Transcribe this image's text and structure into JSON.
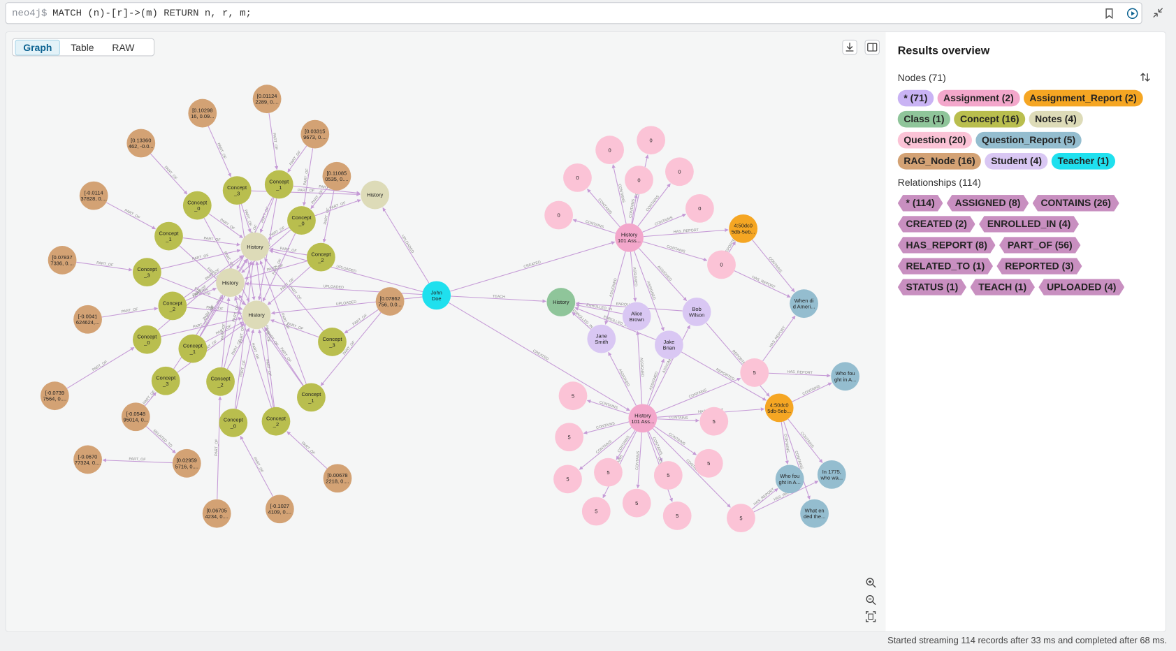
{
  "query_bar": {
    "prompt": "neo4j$",
    "query": "MATCH (n)-[r]->(m) RETURN n, r, m;"
  },
  "tabs": [
    "Graph",
    "Table",
    "RAW"
  ],
  "status": "Started streaming 114 records after 33 ms and completed after 68 ms.",
  "results_overview": {
    "title": "Results overview",
    "nodes_heading": "Nodes (71)",
    "node_chips": [
      {
        "label": "* (71)",
        "color": "#c9b3f4"
      },
      {
        "label": "Assignment (2)",
        "color": "#f3a7cb"
      },
      {
        "label": "Assignment_Report (2)",
        "color": "#f5a623"
      },
      {
        "label": "Class (1)",
        "color": "#8fc59a"
      },
      {
        "label": "Concept (16)",
        "color": "#b9be4e"
      },
      {
        "label": "Notes (4)",
        "color": "#dddbb8"
      },
      {
        "label": "Question (20)",
        "color": "#fbc3d6"
      },
      {
        "label": "Question_Report (5)",
        "color": "#94bdcf"
      },
      {
        "label": "RAG_Node (16)",
        "color": "#d3a274"
      },
      {
        "label": "Student (4)",
        "color": "#d9c7f3"
      },
      {
        "label": "Teacher (1)",
        "color": "#1fe0ee"
      }
    ],
    "relationships_heading": "Relationships (114)",
    "relationship_chip_color": "#c88fc0",
    "relationship_chips": [
      "* (114)",
      "ASSIGNED (8)",
      "CONTAINS (26)",
      "CREATED (2)",
      "ENROLLED_IN (4)",
      "HAS_REPORT (8)",
      "PART_OF (56)",
      "RELATED_TO (1)",
      "REPORTED (3)",
      "STATUS (1)",
      "TEACH (1)",
      "UPLOADED (4)"
    ]
  },
  "graph": {
    "edge_labels": [
      "PART_OF",
      "CONTAINS",
      "HAS_REPORT",
      "ASSIGNED",
      "ENROLLED_IN",
      "UPLOADED",
      "CREATED",
      "TEACH",
      "RELATED_TO",
      "REPORTED"
    ],
    "nodes": [
      {
        "label": [
          "[0.01124",
          "2289, 0...."
        ],
        "color": "#d3a274"
      },
      {
        "label": [
          "[0.10298",
          "16, 0.09..."
        ],
        "color": "#d3a274"
      },
      {
        "label": [
          "[0.13360",
          "462, -0.0..."
        ],
        "color": "#d3a274"
      },
      {
        "label": [
          "[0.03315",
          "9673, 0...."
        ],
        "color": "#d3a274"
      },
      {
        "label": [
          "[0.11085",
          "0535, 0...."
        ],
        "color": "#d3a274"
      },
      {
        "label": [
          "[-0.0114",
          "37828, 0...."
        ],
        "color": "#d3a274"
      },
      {
        "label": [
          "[0.07837",
          "7336, 0...."
        ],
        "color": "#d3a274"
      },
      {
        "label": [
          "[-0.0041",
          "624624,..."
        ],
        "color": "#d3a274"
      },
      {
        "label": [
          "[-0.0739",
          "7564, 0...."
        ],
        "color": "#d3a274"
      },
      {
        "label": [
          "[-0.0548",
          "95014, 0..."
        ],
        "color": "#d3a274"
      },
      {
        "label": [
          "[-0.0670",
          "77324, 0...."
        ],
        "color": "#d3a274"
      },
      {
        "label": [
          "[0.02959",
          "5716, 0...."
        ],
        "color": "#d3a274"
      },
      {
        "label": [
          "[0.06705",
          "4234, 0...."
        ],
        "color": "#d3a274"
      },
      {
        "label": [
          "[-0.1027",
          "4109, 0...."
        ],
        "color": "#d3a274"
      },
      {
        "label": [
          "[0.00678",
          "2218, 0...."
        ],
        "color": "#d3a274"
      },
      {
        "label": [
          "[0.07862",
          "756, 0.0..."
        ],
        "color": "#d3a274"
      },
      {
        "label": [
          "Concept",
          "_3"
        ],
        "color": "#b9be4e"
      },
      {
        "label": [
          "Concept",
          "_1"
        ],
        "color": "#b9be4e"
      },
      {
        "label": [
          "Concept",
          "_0"
        ],
        "color": "#b9be4e"
      },
      {
        "label": [
          "Concept",
          "_0"
        ],
        "color": "#b9be4e"
      },
      {
        "label": [
          "Concept",
          "_1"
        ],
        "color": "#b9be4e"
      },
      {
        "label": [
          "Concept",
          "_2"
        ],
        "color": "#b9be4e"
      },
      {
        "label": [
          "Concept",
          "_3"
        ],
        "color": "#b9be4e"
      },
      {
        "label": [
          "Concept",
          "_2"
        ],
        "color": "#b9be4e"
      },
      {
        "label": [
          "Concept",
          "_0"
        ],
        "color": "#b9be4e"
      },
      {
        "label": [
          "Concept",
          "_1"
        ],
        "color": "#b9be4e"
      },
      {
        "label": [
          "Concept",
          "_3"
        ],
        "color": "#b9be4e"
      },
      {
        "label": [
          "Concept",
          "_2"
        ],
        "color": "#b9be4e"
      },
      {
        "label": [
          "Concept",
          "_3"
        ],
        "color": "#b9be4e"
      },
      {
        "label": [
          "Concept",
          "_1"
        ],
        "color": "#b9be4e"
      },
      {
        "label": [
          "Concept",
          "_0"
        ],
        "color": "#b9be4e"
      },
      {
        "label": [
          "Concept",
          "_2"
        ],
        "color": "#b9be4e"
      },
      {
        "label": [
          "History"
        ],
        "color": "#dddbb8"
      },
      {
        "label": [
          "History"
        ],
        "color": "#dddbb8"
      },
      {
        "label": [
          "History"
        ],
        "color": "#dddbb8"
      },
      {
        "label": [
          "History"
        ],
        "color": "#dddbb8"
      },
      {
        "label": [
          "John",
          "Doe"
        ],
        "color": "#1fe0ee"
      },
      {
        "label": [
          "History"
        ],
        "color": "#8fc59a"
      },
      {
        "label": [
          "History",
          "101 Ass..."
        ],
        "color": "#f3a7cb"
      },
      {
        "label": [
          "History",
          "101 Ass..."
        ],
        "color": "#f3a7cb"
      },
      {
        "label": [
          "4:50dc0",
          "5db-5eb..."
        ],
        "color": "#f5a623"
      },
      {
        "label": [
          "4:50dc0",
          "5db-5eb..."
        ],
        "color": "#f5a623"
      },
      {
        "label": [
          "Alice",
          "Brown"
        ],
        "color": "#d9c7f3"
      },
      {
        "label": [
          "Bob",
          "Wilson"
        ],
        "color": "#d9c7f3"
      },
      {
        "label": [
          "Jane",
          "Smith"
        ],
        "color": "#d9c7f3"
      },
      {
        "label": [
          "Jake",
          "Brian"
        ],
        "color": "#d9c7f3"
      },
      {
        "label": [
          "0"
        ],
        "color": "#fbc3d6"
      },
      {
        "label": [
          "0"
        ],
        "color": "#fbc3d6"
      },
      {
        "label": [
          "0"
        ],
        "color": "#fbc3d6"
      },
      {
        "label": [
          "0"
        ],
        "color": "#fbc3d6"
      },
      {
        "label": [
          "0"
        ],
        "color": "#fbc3d6"
      },
      {
        "label": [
          "0"
        ],
        "color": "#fbc3d6"
      },
      {
        "label": [
          "0"
        ],
        "color": "#fbc3d6"
      },
      {
        "label": [
          "0"
        ],
        "color": "#fbc3d6"
      },
      {
        "label": [
          "5"
        ],
        "color": "#fbc3d6"
      },
      {
        "label": [
          "5"
        ],
        "color": "#fbc3d6"
      },
      {
        "label": [
          "5"
        ],
        "color": "#fbc3d6"
      },
      {
        "label": [
          "5"
        ],
        "color": "#fbc3d6"
      },
      {
        "label": [
          "5"
        ],
        "color": "#fbc3d6"
      },
      {
        "label": [
          "5"
        ],
        "color": "#fbc3d6"
      },
      {
        "label": [
          "5"
        ],
        "color": "#fbc3d6"
      },
      {
        "label": [
          "5"
        ],
        "color": "#fbc3d6"
      },
      {
        "label": [
          "5"
        ],
        "color": "#fbc3d6"
      },
      {
        "label": [
          "5"
        ],
        "color": "#fbc3d6"
      },
      {
        "label": [
          "5"
        ],
        "color": "#fbc3d6"
      },
      {
        "label": [
          "5"
        ],
        "color": "#fbc3d6"
      },
      {
        "label": [
          "When di",
          "d Ameri..."
        ],
        "color": "#94bdcf"
      },
      {
        "label": [
          "Who fou",
          "ght in A..."
        ],
        "color": "#94bdcf"
      },
      {
        "label": [
          "Who fou",
          "ght in A..."
        ],
        "color": "#94bdcf"
      },
      {
        "label": [
          "In 1775,",
          "who wa..."
        ],
        "color": "#94bdcf"
      },
      {
        "label": [
          "What en",
          "ded the..."
        ],
        "color": "#94bdcf"
      }
    ]
  }
}
